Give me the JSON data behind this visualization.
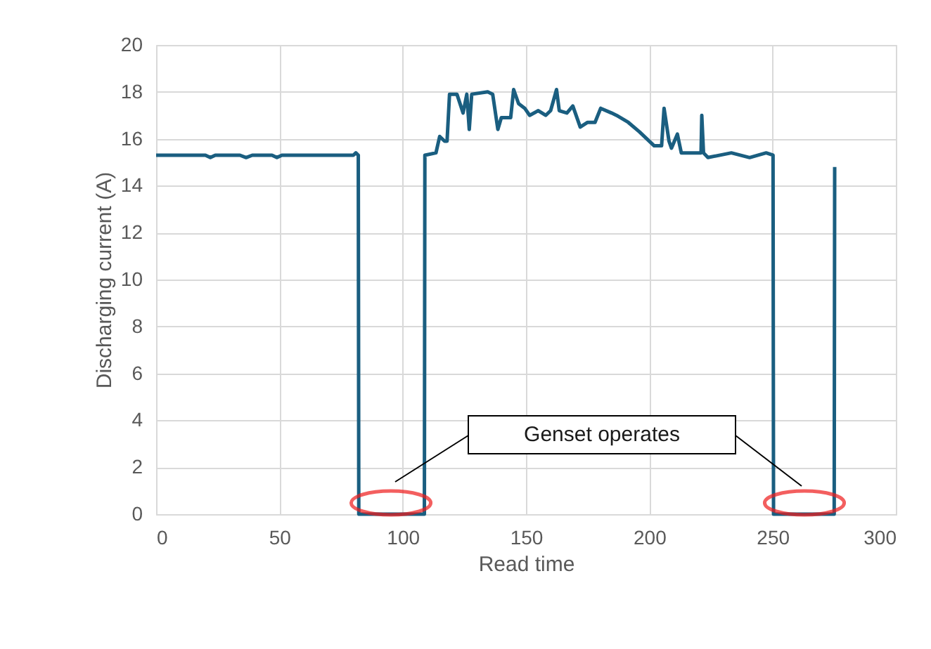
{
  "chart_data": {
    "type": "line",
    "xlabel": "Read time",
    "ylabel": "Discharging current (A)",
    "x": [
      0,
      20,
      22,
      24,
      34,
      36.5,
      39,
      47,
      49,
      51,
      80,
      81,
      82,
      82.2,
      108.8,
      109,
      113.5,
      115,
      117,
      118,
      119,
      122,
      124.5,
      126,
      127,
      128,
      134.5,
      136.5,
      138.6,
      140,
      143.8,
      145,
      147,
      149.5,
      151.5,
      155,
      158,
      160,
      162.4,
      163.5,
      166.6,
      169,
      172,
      175,
      178,
      180.3,
      184.7,
      186.7,
      191.5,
      196,
      202,
      205,
      206,
      208,
      209,
      211.4,
      213,
      221,
      221.3,
      222,
      223.8,
      233.3,
      240.7,
      247.4,
      250.2,
      250.4,
      275,
      275.2
    ],
    "series": [
      {
        "color": "#1a5e80",
        "values": [
          15.3,
          15.3,
          15.2,
          15.3,
          15.3,
          15.2,
          15.3,
          15.3,
          15.2,
          15.3,
          15.3,
          15.4,
          15.3,
          0,
          0,
          15.3,
          15.4,
          16.1,
          15.9,
          15.9,
          17.9,
          17.9,
          17.1,
          17.9,
          16.4,
          17.9,
          18.0,
          17.9,
          16.4,
          16.9,
          16.9,
          18.1,
          17.5,
          17.3,
          17.0,
          17.2,
          17.0,
          17.2,
          18.1,
          17.2,
          17.1,
          17.4,
          16.5,
          16.7,
          16.7,
          17.3,
          17.1,
          17.0,
          16.7,
          16.3,
          15.7,
          15.7,
          17.3,
          15.9,
          15.6,
          16.2,
          15.4,
          15.4,
          17.0,
          15.4,
          15.2,
          15.4,
          15.2,
          15.4,
          15.3,
          0,
          0,
          14.8
        ]
      }
    ],
    "xlim": [
      0,
      300
    ],
    "xticks": [
      0,
      50,
      100,
      150,
      200,
      250,
      300
    ],
    "ylim": [
      0,
      20
    ],
    "yticks": [
      0,
      2,
      4,
      6,
      8,
      10,
      12,
      14,
      16,
      18,
      20
    ],
    "grid": true,
    "marker": "none",
    "line_style": "solid",
    "annotations": [
      "Genset operates"
    ]
  }
}
